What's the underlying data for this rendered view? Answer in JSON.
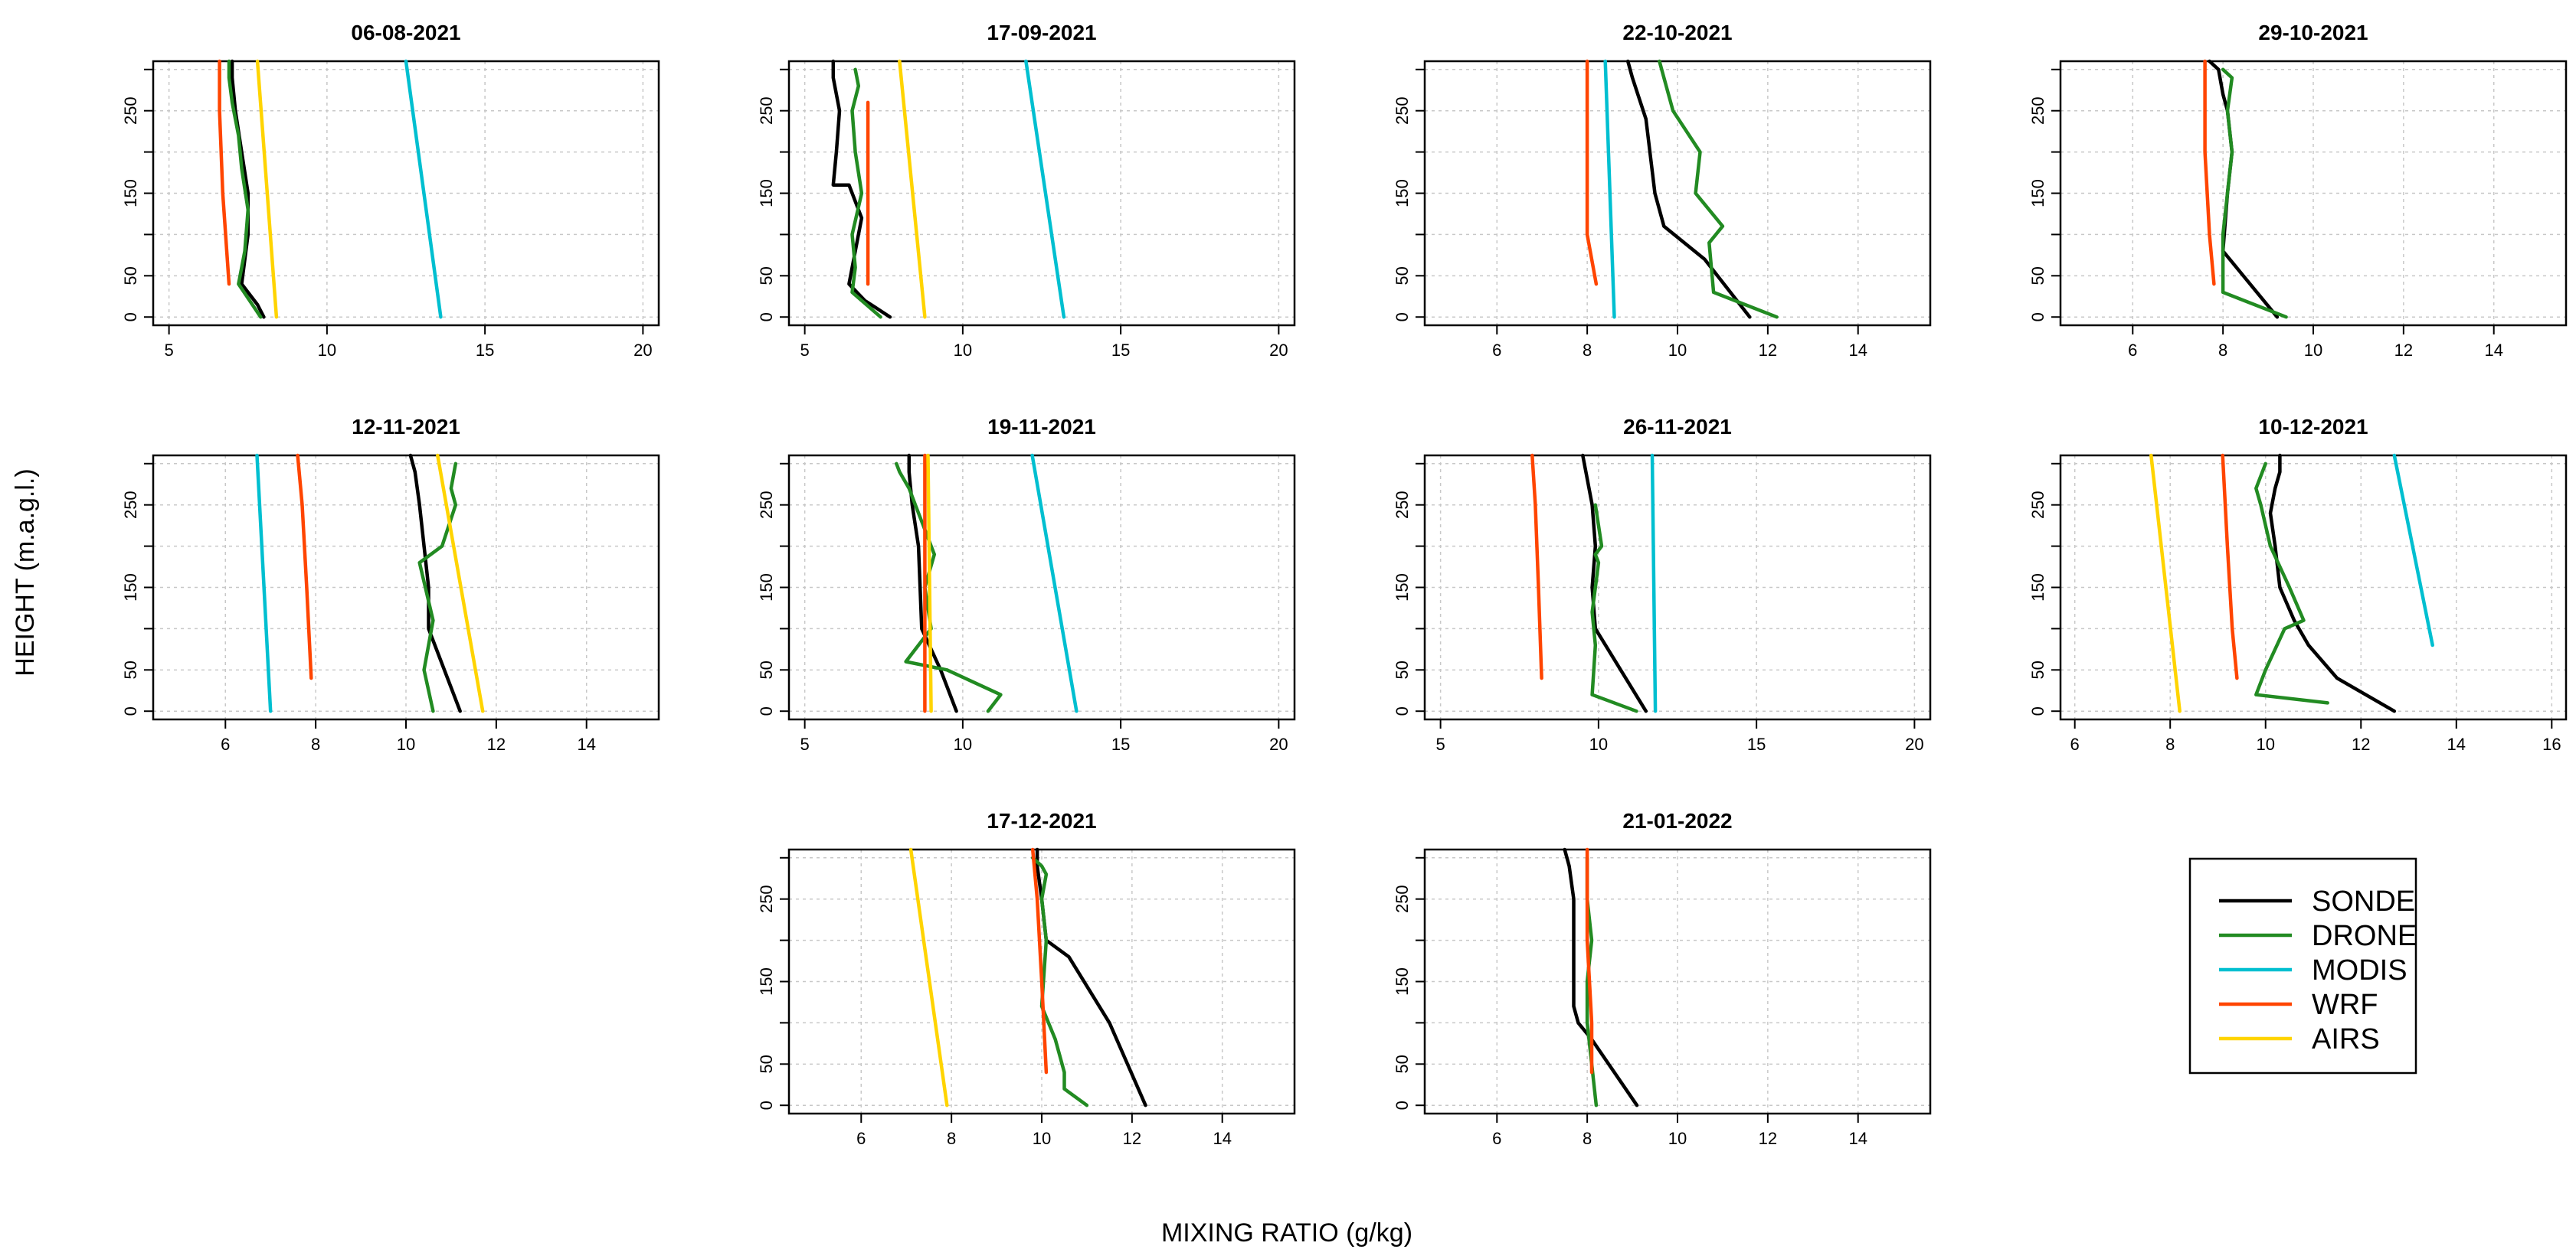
{
  "labels": {
    "ylabel": "HEIGHT (m.a.g.l.)",
    "xlabel": "MIXING RATIO (g/kg)"
  },
  "legend": {
    "entries": [
      {
        "name": "SONDE",
        "color": "#000000"
      },
      {
        "name": "DRONE",
        "color": "#228B22"
      },
      {
        "name": "MODIS",
        "color": "#00BFD0"
      },
      {
        "name": "WRF",
        "color": "#FF4500"
      },
      {
        "name": "AIRS",
        "color": "#FFD400"
      }
    ]
  },
  "chart_data": [
    {
      "type": "line",
      "title": "06-08-2021",
      "xlim": [
        4.5,
        20.5
      ],
      "xticks": [
        5,
        10,
        15,
        20
      ],
      "ylim": [
        -10,
        310
      ],
      "yticks": [
        0,
        50,
        150,
        250
      ],
      "series": [
        {
          "name": "SONDE",
          "x": [
            8.0,
            7.8,
            7.3,
            7.5,
            7.5,
            7.3,
            7.1,
            7.0,
            7.0
          ],
          "y": [
            0,
            15,
            40,
            100,
            150,
            200,
            250,
            290,
            310
          ]
        },
        {
          "name": "DRONE",
          "x": [
            7.9,
            7.2,
            7.4,
            7.5,
            7.3,
            7.2,
            7.0,
            6.9,
            6.9
          ],
          "y": [
            0,
            40,
            80,
            130,
            180,
            220,
            260,
            290,
            310
          ]
        },
        {
          "name": "MODIS",
          "x": [
            13.6,
            12.5
          ],
          "y": [
            0,
            310
          ]
        },
        {
          "name": "WRF",
          "x": [
            6.9,
            6.7,
            6.6,
            6.6
          ],
          "y": [
            40,
            150,
            250,
            310
          ]
        },
        {
          "name": "AIRS",
          "x": [
            8.4,
            7.8
          ],
          "y": [
            0,
            310
          ]
        }
      ]
    },
    {
      "type": "line",
      "title": "17-09-2021",
      "xlim": [
        4.5,
        20.5
      ],
      "xticks": [
        5,
        10,
        15,
        20
      ],
      "ylim": [
        -10,
        310
      ],
      "yticks": [
        0,
        50,
        150,
        250
      ],
      "series": [
        {
          "name": "SONDE",
          "x": [
            7.7,
            6.9,
            6.4,
            6.6,
            6.8,
            6.4,
            5.9,
            6.0,
            6.1,
            5.9,
            5.9
          ],
          "y": [
            0,
            20,
            40,
            80,
            120,
            160,
            160,
            200,
            250,
            290,
            310
          ]
        },
        {
          "name": "DRONE",
          "x": [
            7.4,
            6.5,
            6.6,
            6.5,
            6.8,
            6.6,
            6.5,
            6.7,
            6.6
          ],
          "y": [
            0,
            30,
            60,
            100,
            150,
            200,
            250,
            280,
            300
          ]
        },
        {
          "name": "MODIS",
          "x": [
            13.2,
            12.0
          ],
          "y": [
            0,
            310
          ]
        },
        {
          "name": "WRF",
          "x": [
            7.0,
            7.0,
            7.0
          ],
          "y": [
            40,
            150,
            260
          ]
        },
        {
          "name": "AIRS",
          "x": [
            8.8,
            8.0
          ],
          "y": [
            0,
            310
          ]
        }
      ]
    },
    {
      "type": "line",
      "title": "22-10-2021",
      "xlim": [
        4.4,
        15.6
      ],
      "xticks": [
        6,
        8,
        10,
        12,
        14
      ],
      "ylim": [
        -10,
        310
      ],
      "yticks": [
        0,
        50,
        150,
        250
      ],
      "series": [
        {
          "name": "SONDE",
          "x": [
            11.6,
            10.6,
            9.7,
            9.5,
            9.3,
            9.0,
            8.9
          ],
          "y": [
            0,
            70,
            110,
            150,
            240,
            290,
            310
          ]
        },
        {
          "name": "DRONE",
          "x": [
            12.2,
            10.8,
            10.7,
            11.0,
            10.4,
            10.5,
            9.9,
            9.7,
            9.6
          ],
          "y": [
            0,
            30,
            90,
            110,
            150,
            200,
            250,
            290,
            310
          ]
        },
        {
          "name": "MODIS",
          "x": [
            8.6,
            8.4
          ],
          "y": [
            0,
            310
          ]
        },
        {
          "name": "WRF",
          "x": [
            8.2,
            8.0,
            8.0,
            8.0
          ],
          "y": [
            40,
            100,
            200,
            310
          ]
        }
      ]
    },
    {
      "type": "line",
      "title": "29-10-2021",
      "xlim": [
        4.4,
        15.6
      ],
      "xticks": [
        6,
        8,
        10,
        12,
        14
      ],
      "ylim": [
        -10,
        310
      ],
      "yticks": [
        0,
        50,
        150,
        250
      ],
      "series": [
        {
          "name": "SONDE",
          "x": [
            9.2,
            8.0,
            8.1,
            8.2,
            8.1,
            8.0,
            7.9,
            7.7
          ],
          "y": [
            0,
            80,
            150,
            200,
            250,
            270,
            300,
            310
          ]
        },
        {
          "name": "DRONE",
          "x": [
            9.4,
            8.0,
            8.0,
            8.1,
            8.2,
            8.1,
            8.2,
            8.0
          ],
          "y": [
            0,
            30,
            100,
            150,
            200,
            250,
            290,
            300
          ]
        },
        {
          "name": "WRF",
          "x": [
            7.8,
            7.7,
            7.6,
            7.6
          ],
          "y": [
            40,
            100,
            200,
            310
          ]
        }
      ]
    },
    {
      "type": "line",
      "title": "12-11-2021",
      "xlim": [
        4.4,
        15.6
      ],
      "xticks": [
        6,
        8,
        10,
        12,
        14
      ],
      "ylim": [
        -10,
        310
      ],
      "yticks": [
        0,
        50,
        150,
        250
      ],
      "series": [
        {
          "name": "SONDE",
          "x": [
            11.2,
            10.5,
            10.5,
            10.4,
            10.3,
            10.2,
            10.1
          ],
          "y": [
            0,
            100,
            150,
            200,
            250,
            290,
            310
          ]
        },
        {
          "name": "DRONE",
          "x": [
            10.6,
            10.4,
            10.6,
            10.3,
            10.8,
            11.1,
            11.0,
            11.1
          ],
          "y": [
            0,
            50,
            110,
            180,
            200,
            250,
            270,
            300
          ]
        },
        {
          "name": "MODIS",
          "x": [
            7.0,
            6.7
          ],
          "y": [
            0,
            310
          ]
        },
        {
          "name": "WRF",
          "x": [
            7.9,
            7.8,
            7.7,
            7.6
          ],
          "y": [
            40,
            150,
            250,
            310
          ]
        },
        {
          "name": "AIRS",
          "x": [
            11.7,
            10.7
          ],
          "y": [
            0,
            310
          ]
        }
      ]
    },
    {
      "type": "line",
      "title": "19-11-2021",
      "xlim": [
        4.5,
        20.5
      ],
      "xticks": [
        5,
        10,
        15,
        20
      ],
      "ylim": [
        -10,
        310
      ],
      "yticks": [
        0,
        50,
        150,
        250
      ],
      "series": [
        {
          "name": "SONDE",
          "x": [
            9.8,
            9.3,
            8.7,
            8.6,
            8.4,
            8.3,
            8.3
          ],
          "y": [
            0,
            50,
            100,
            200,
            250,
            290,
            310
          ]
        },
        {
          "name": "DRONE",
          "x": [
            10.8,
            11.2,
            9.5,
            8.2,
            9.0,
            8.8,
            9.1,
            8.8,
            8.5,
            8.3,
            8.0,
            7.9
          ],
          "y": [
            0,
            20,
            50,
            60,
            100,
            150,
            190,
            220,
            250,
            270,
            290,
            300
          ]
        },
        {
          "name": "MODIS",
          "x": [
            13.6,
            12.2
          ],
          "y": [
            0,
            310
          ]
        },
        {
          "name": "WRF",
          "x": [
            8.8,
            8.8,
            8.8,
            8.8
          ],
          "y": [
            0,
            100,
            200,
            310
          ]
        },
        {
          "name": "AIRS",
          "x": [
            9.0,
            8.9
          ],
          "y": [
            0,
            310
          ]
        }
      ]
    },
    {
      "type": "line",
      "title": "26-11-2021",
      "xlim": [
        4.5,
        20.5
      ],
      "xticks": [
        5,
        10,
        15,
        20
      ],
      "ylim": [
        -10,
        310
      ],
      "yticks": [
        0,
        50,
        150,
        250
      ],
      "series": [
        {
          "name": "SONDE",
          "x": [
            11.5,
            9.9,
            9.8,
            9.9,
            9.8,
            9.6,
            9.5
          ],
          "y": [
            0,
            100,
            150,
            200,
            250,
            290,
            310
          ]
        },
        {
          "name": "DRONE",
          "x": [
            11.2,
            9.8,
            9.9,
            9.8,
            9.9,
            10.0,
            9.9,
            10.1,
            9.9
          ],
          "y": [
            0,
            20,
            80,
            120,
            150,
            180,
            190,
            200,
            250
          ]
        },
        {
          "name": "MODIS",
          "x": [
            11.8,
            11.7
          ],
          "y": [
            0,
            310
          ]
        },
        {
          "name": "WRF",
          "x": [
            8.2,
            8.1,
            8.0,
            7.9
          ],
          "y": [
            40,
            150,
            250,
            310
          ]
        }
      ]
    },
    {
      "type": "line",
      "title": "10-12-2021",
      "xlim": [
        5.7,
        16.3
      ],
      "xticks": [
        6,
        8,
        10,
        12,
        14,
        16
      ],
      "ylim": [
        -10,
        310
      ],
      "yticks": [
        0,
        50,
        150,
        250
      ],
      "series": [
        {
          "name": "SONDE",
          "x": [
            12.7,
            11.5,
            10.9,
            10.6,
            10.3,
            10.2,
            10.1,
            10.2,
            10.3,
            10.3
          ],
          "y": [
            0,
            40,
            80,
            110,
            150,
            200,
            240,
            270,
            290,
            310
          ]
        },
        {
          "name": "DRONE",
          "x": [
            11.3,
            9.8,
            10.0,
            10.4,
            10.8,
            10.5,
            10.1,
            9.9,
            9.8,
            10.0
          ],
          "y": [
            10,
            20,
            50,
            100,
            110,
            150,
            200,
            250,
            270,
            300
          ]
        },
        {
          "name": "MODIS",
          "x": [
            13.5,
            12.7
          ],
          "y": [
            80,
            310
          ]
        },
        {
          "name": "WRF",
          "x": [
            9.4,
            9.3,
            9.2,
            9.1
          ],
          "y": [
            40,
            100,
            200,
            310
          ]
        },
        {
          "name": "AIRS",
          "x": [
            8.2,
            7.6
          ],
          "y": [
            0,
            310
          ]
        }
      ]
    },
    {
      "type": "line",
      "title": "17-12-2021",
      "xlim": [
        4.4,
        15.6
      ],
      "xticks": [
        6,
        8,
        10,
        12,
        14
      ],
      "ylim": [
        -10,
        310
      ],
      "yticks": [
        0,
        50,
        150,
        250
      ],
      "series": [
        {
          "name": "SONDE",
          "x": [
            12.3,
            11.5,
            10.6,
            10.1,
            10.0,
            9.9,
            9.9,
            9.9
          ],
          "y": [
            0,
            100,
            180,
            200,
            250,
            290,
            300,
            310
          ]
        },
        {
          "name": "DRONE",
          "x": [
            11.0,
            10.5,
            10.5,
            10.3,
            10.0,
            10.1,
            10.0,
            10.1,
            10.0,
            9.8
          ],
          "y": [
            0,
            20,
            40,
            80,
            120,
            200,
            250,
            280,
            290,
            300
          ]
        },
        {
          "name": "WRF",
          "x": [
            10.1,
            10.0,
            9.9,
            9.8
          ],
          "y": [
            40,
            150,
            250,
            310
          ]
        },
        {
          "name": "AIRS",
          "x": [
            7.9,
            7.1
          ],
          "y": [
            0,
            310
          ]
        }
      ]
    },
    {
      "type": "line",
      "title": "21-01-2022",
      "xlim": [
        4.4,
        15.6
      ],
      "xticks": [
        6,
        8,
        10,
        12,
        14
      ],
      "ylim": [
        -10,
        310
      ],
      "yticks": [
        0,
        50,
        150,
        250
      ],
      "series": [
        {
          "name": "SONDE",
          "x": [
            9.1,
            8.1,
            7.8,
            7.7,
            7.7,
            7.6,
            7.5
          ],
          "y": [
            0,
            80,
            100,
            120,
            250,
            290,
            310
          ]
        },
        {
          "name": "DRONE",
          "x": [
            8.2,
            8.1,
            8.0,
            8.0,
            8.1,
            8.0,
            8.0
          ],
          "y": [
            0,
            50,
            100,
            150,
            200,
            250,
            300
          ]
        },
        {
          "name": "WRF",
          "x": [
            8.1,
            8.1,
            8.0,
            8.0,
            8.0
          ],
          "y": [
            40,
            100,
            200,
            250,
            310
          ]
        }
      ]
    }
  ]
}
